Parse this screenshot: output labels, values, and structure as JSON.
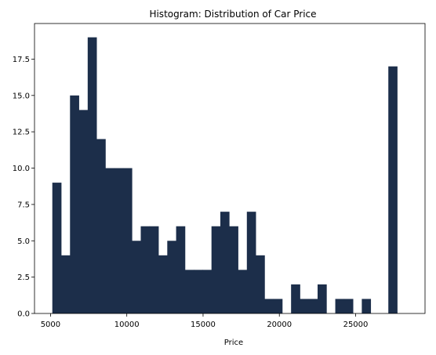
{
  "chart_data": {
    "type": "bar",
    "title": "Histogram: Distribution of Car Price",
    "xlabel": "Price",
    "ylabel": "",
    "bar_color": "#1c2e4a",
    "xlim": [
      3950,
      29550
    ],
    "ylim": [
      0,
      19.95
    ],
    "x_ticks": [
      5000,
      10000,
      15000,
      20000,
      25000
    ],
    "y_ticks": [
      0,
      2.5,
      5,
      7.5,
      10,
      12.5,
      15,
      17.5
    ],
    "x_tick_labels": [
      "5000",
      "10000",
      "15000",
      "20000",
      "25000"
    ],
    "y_tick_labels": [
      "0.0",
      "2.5",
      "5.0",
      "7.5",
      "10.0",
      "12.5",
      "15.0",
      "17.5"
    ],
    "grid": false,
    "bin_start": 5118,
    "bin_width": 579.65,
    "counts": [
      9,
      4,
      15,
      14,
      19,
      12,
      10,
      10,
      10,
      5,
      6,
      6,
      4,
      5,
      6,
      3,
      3,
      3,
      6,
      7,
      6,
      3,
      7,
      4,
      1,
      1,
      0,
      2,
      1,
      1,
      2,
      0,
      1,
      1,
      0,
      1,
      0,
      0,
      17
    ]
  }
}
